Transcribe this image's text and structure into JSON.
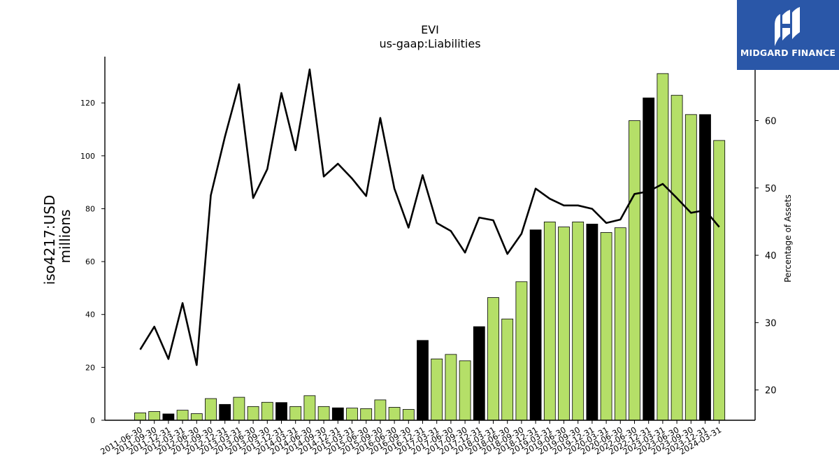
{
  "logo": {
    "text": "MIDGARD FINANCE"
  },
  "chart_data": {
    "type": "bar",
    "title": "EVI",
    "subtitle": "us-gaap:Liabilities",
    "ylabel": "iso4217:USD",
    "ylabel2": "millions",
    "y2label": "Percentage of Assets",
    "ylim": [
      0,
      137.5
    ],
    "yticks": [
      0,
      20,
      40,
      60,
      80,
      100,
      120
    ],
    "y2lim": [
      15.5,
      69.5
    ],
    "y2ticks": [
      20,
      30,
      40,
      50,
      60
    ],
    "colors": {
      "quarter": "#b5df68",
      "annual": "#000000",
      "line": "#000000"
    },
    "categories": [
      "2011-06-30",
      "2011-09-30",
      "2011-12-31",
      "2012-03-31",
      "2012-06-30",
      "2012-09-30",
      "2012-12-31",
      "2013-03-31",
      "2013-06-30",
      "2013-09-30",
      "2013-12-31",
      "2014-03-31",
      "2014-06-30",
      "2014-09-30",
      "2014-12-31",
      "2015-03-31",
      "2015-06-30",
      "2015-09-30",
      "2016-06-30",
      "2016-09-30",
      "2016-12-31",
      "2017-03-31",
      "2017-06-30",
      "2017-09-30",
      "2017-12-31",
      "2018-03-31",
      "2018-06-30",
      "2018-09-30",
      "2018-12-31",
      "2019-03-31",
      "2019-06-30",
      "2019-09-30",
      "2019-12-31",
      "2020-03-31",
      "2020-06-30",
      "2022-06-30",
      "2022-12-31",
      "2023-03-31",
      "2023-06-30",
      "2023-09-30",
      "2023-12-31",
      "2024-03-31"
    ],
    "series": [
      {
        "type": "bar",
        "values": [
          2.8,
          3.3,
          2.4,
          3.8,
          2.5,
          8.2,
          6.0,
          8.7,
          5.2,
          6.8,
          6.7,
          5.2,
          9.3,
          5.2,
          4.7,
          4.6,
          4.4,
          7.7,
          4.9,
          4.1,
          30.2,
          23.2,
          24.9,
          22.5,
          35.4,
          46.4,
          38.3,
          52.4,
          72.0,
          75.0,
          73.1,
          75.0,
          74.2,
          71.0,
          72.8,
          113.3,
          121.9,
          131.1,
          122.9,
          115.6,
          115.6,
          105.8
        ],
        "annual": [
          false,
          false,
          true,
          false,
          false,
          false,
          true,
          false,
          false,
          false,
          true,
          false,
          false,
          false,
          true,
          false,
          false,
          false,
          false,
          false,
          true,
          false,
          false,
          false,
          true,
          false,
          false,
          false,
          true,
          false,
          false,
          false,
          true,
          false,
          false,
          false,
          true,
          false,
          false,
          false,
          true,
          false
        ]
      },
      {
        "type": "line",
        "axis": "right",
        "values": [
          26.0,
          29.4,
          24.6,
          32.9,
          23.7,
          48.9,
          57.6,
          65.4,
          48.5,
          52.8,
          64.1,
          55.6,
          67.6,
          51.7,
          53.6,
          51.4,
          48.8,
          60.4,
          49.9,
          44.1,
          51.9,
          44.8,
          43.6,
          40.4,
          45.6,
          45.2,
          40.2,
          43.2,
          49.9,
          48.4,
          47.4,
          47.4,
          46.9,
          44.8,
          45.3,
          49.1,
          49.5,
          50.6,
          48.5,
          46.3,
          46.7,
          44.2
        ]
      }
    ]
  }
}
